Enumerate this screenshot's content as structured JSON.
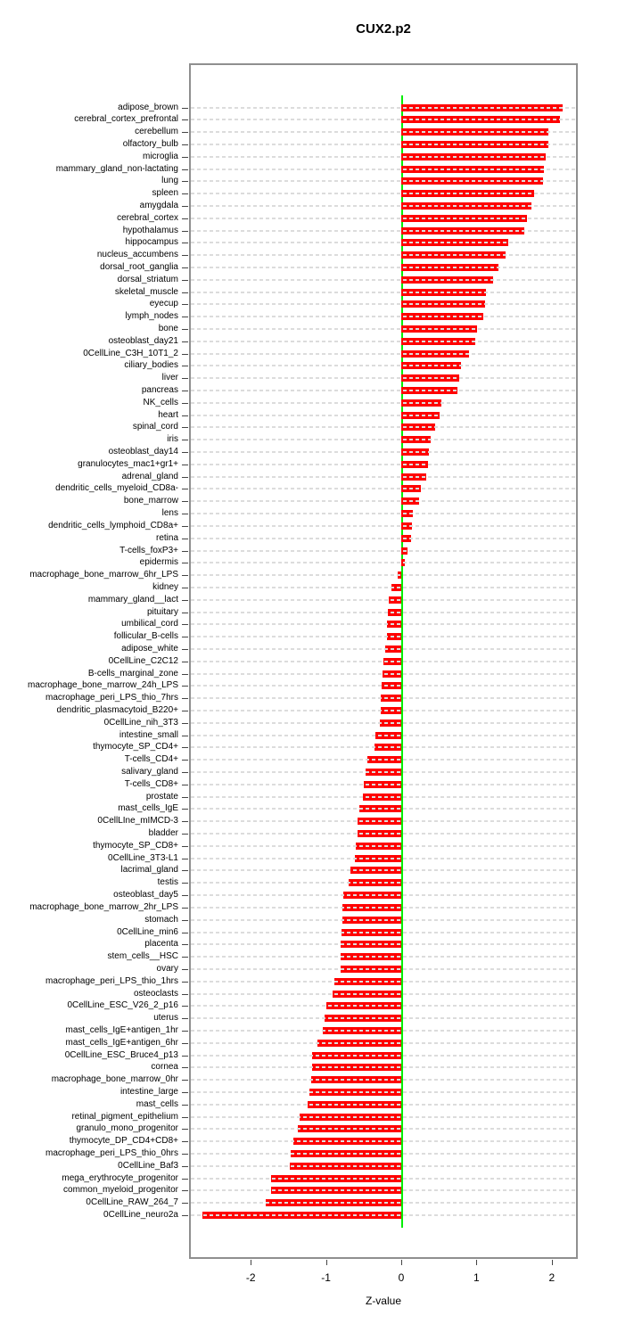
{
  "page": {
    "title": "CUX2.p2"
  },
  "colors": {
    "bar": "#FF0000",
    "zero_line": "#00EE00",
    "grid": "#dcdcdc",
    "frame": "#8f8f8f"
  },
  "chart_data": {
    "type": "bar",
    "orientation": "horizontal",
    "title": "CUX2.p2",
    "xlabel": "Z-value",
    "ylabel": "",
    "xlim": [
      -2.82,
      2.35
    ],
    "x_ticks": [
      -2,
      -1,
      0,
      1,
      2
    ],
    "grid": true,
    "legend": "none",
    "zero_reference_line": true,
    "categories": [
      "adipose_brown",
      "cerebral_cortex_prefrontal",
      "cerebellum",
      "olfactory_bulb",
      "microglia",
      "mammary_gland_non-lactating",
      "lung",
      "spleen",
      "amygdala",
      "cerebral_cortex",
      "hypothalamus",
      "hippocampus",
      "nucleus_accumbens",
      "dorsal_root_ganglia",
      "dorsal_striatum",
      "skeletal_muscle",
      "eyecup",
      "lymph_nodes",
      "bone",
      "osteoblast_day21",
      "0CellLine_C3H_10T1_2",
      "ciliary_bodies",
      "liver",
      "pancreas",
      "NK_cells",
      "heart",
      "spinal_cord",
      "iris",
      "osteoblast_day14",
      "granulocytes_mac1+gr1+",
      "adrenal_gland",
      "dendritic_cells_myeloid_CD8a-",
      "bone_marrow",
      "lens",
      "dendritic_cells_lymphoid_CD8a+",
      "retina",
      "T-cells_foxP3+",
      "epidermis",
      "macrophage_bone_marrow_6hr_LPS",
      "kidney",
      "mammary_gland__lact",
      "pituitary",
      "umbilical_cord",
      "follicular_B-cells",
      "adipose_white",
      "0CellLine_C2C12",
      "B-cells_marginal_zone",
      "macrophage_bone_marrow_24h_LPS",
      "macrophage_peri_LPS_thio_7hrs",
      "dendritic_plasmacytoid_B220+",
      "0CellLine_nih_3T3",
      "intestine_small",
      "thymocyte_SP_CD4+",
      "T-cells_CD4+",
      "salivary_gland",
      "T-cells_CD8+",
      "prostate",
      "mast_cells_IgE",
      "0CellLIne_mIMCD-3",
      "bladder",
      "thymocyte_SP_CD8+",
      "0CellLine_3T3-L1",
      "lacrimal_gland",
      "testis",
      "osteoblast_day5",
      "macrophage_bone_marrow_2hr_LPS",
      "stomach",
      "0CellLine_min6",
      "placenta",
      "stem_cells__HSC",
      "ovary",
      "macrophage_peri_LPS_thio_1hrs",
      "osteoclasts",
      "0CellLine_ESC_V26_2_p16",
      "uterus",
      "mast_cells_IgE+antigen_1hr",
      "mast_cells_IgE+antigen_6hr",
      "0CellLine_ESC_Bruce4_p13",
      "cornea",
      "macrophage_bone_marrow_0hr",
      "intestine_large",
      "mast_cells",
      "retinal_pigment_epithelium",
      "granulo_mono_progenitor",
      "thymocyte_DP_CD4+CD8+",
      "macrophage_peri_LPS_thio_0hrs",
      "0CellLine_Baf3",
      "mega_erythrocyte_progenitor",
      "common_myeloid_progenitor",
      "0CellLine_RAW_264_7",
      "0CellLine_neuro2a"
    ],
    "values": [
      2.15,
      2.11,
      1.96,
      1.95,
      1.92,
      1.9,
      1.88,
      1.77,
      1.73,
      1.67,
      1.64,
      1.42,
      1.39,
      1.29,
      1.22,
      1.12,
      1.11,
      1.09,
      1.01,
      0.98,
      0.9,
      0.79,
      0.77,
      0.75,
      0.53,
      0.51,
      0.45,
      0.39,
      0.37,
      0.35,
      0.33,
      0.26,
      0.24,
      0.15,
      0.14,
      0.13,
      0.08,
      0.05,
      -0.05,
      -0.13,
      -0.16,
      -0.18,
      -0.19,
      -0.19,
      -0.21,
      -0.24,
      -0.25,
      -0.26,
      -0.27,
      -0.27,
      -0.29,
      -0.34,
      -0.36,
      -0.45,
      -0.47,
      -0.5,
      -0.51,
      -0.56,
      -0.58,
      -0.58,
      -0.6,
      -0.62,
      -0.67,
      -0.7,
      -0.77,
      -0.78,
      -0.78,
      -0.79,
      -0.81,
      -0.81,
      -0.81,
      -0.89,
      -0.91,
      -1.0,
      -1.02,
      -1.04,
      -1.11,
      -1.18,
      -1.19,
      -1.2,
      -1.22,
      -1.24,
      -1.35,
      -1.37,
      -1.43,
      -1.47,
      -1.48,
      -1.73,
      -1.73,
      -1.8,
      -2.64
    ]
  }
}
